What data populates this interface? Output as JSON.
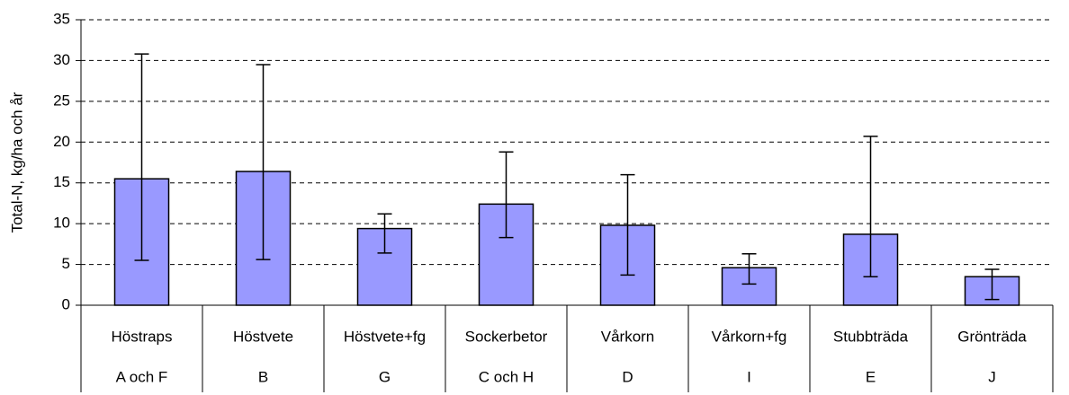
{
  "chart_data": {
    "type": "bar",
    "y_label": "Total-N, kg/ha och år",
    "categories": [
      "Höstraps",
      "Höstvete",
      "Höstvete+fg",
      "Sockerbetor",
      "Vårkorn",
      "Vårkorn+fg",
      "Stubbträda",
      "Grönträda"
    ],
    "category_codes": [
      "A och F",
      "B",
      "G",
      "C och H",
      "D",
      "I",
      "E",
      "J"
    ],
    "series": [
      {
        "color": "#9999ff",
        "values": [
          15.5,
          16.4,
          9.4,
          12.4,
          9.8,
          4.6,
          8.7,
          3.5
        ],
        "lower": [
          5.5,
          5.6,
          6.4,
          8.3,
          3.7,
          2.6,
          3.5,
          0.7
        ],
        "upper": [
          30.8,
          29.5,
          11.2,
          18.8,
          16.0,
          6.3,
          20.7,
          4.4
        ]
      }
    ],
    "ylim": [
      0,
      35
    ],
    "yticks": [
      0,
      5,
      10,
      15,
      20,
      25,
      30,
      35
    ],
    "grid": true
  }
}
